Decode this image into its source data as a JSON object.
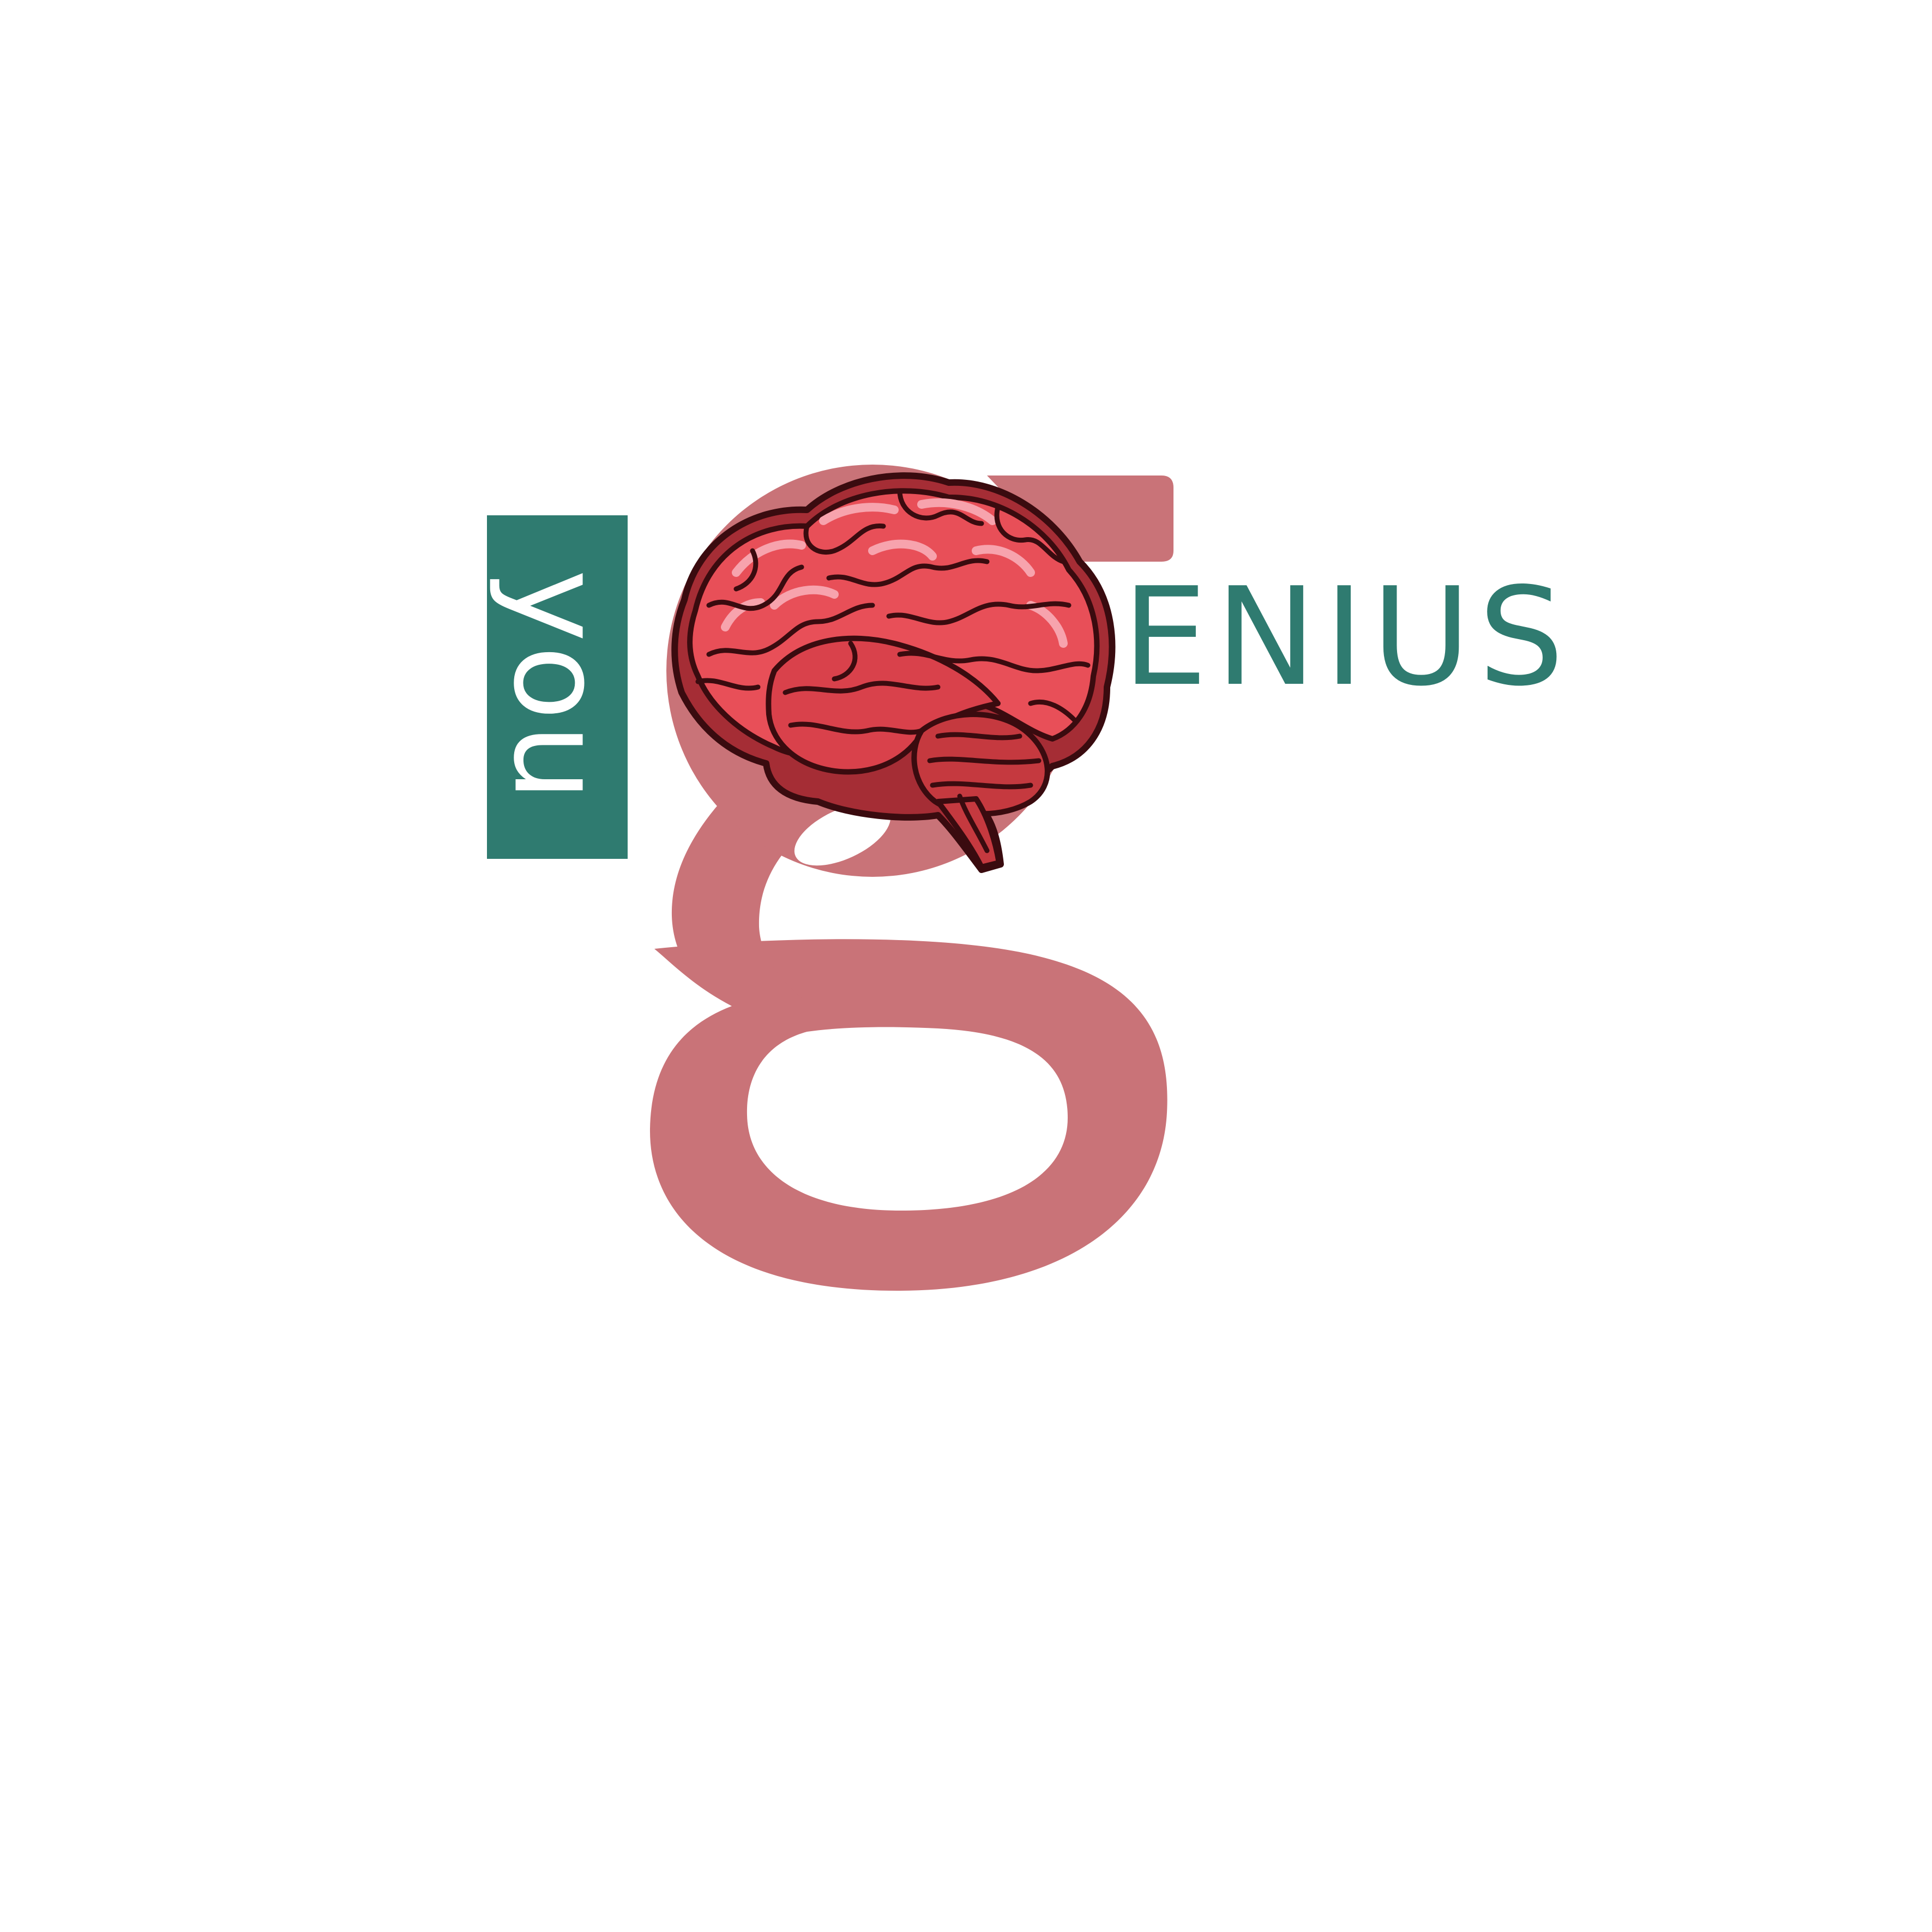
{
  "logo": {
    "word_you": "you",
    "word_enius": "ENIUS"
  },
  "colors": {
    "background": "#ffffff",
    "teal": "#2f7b70",
    "g_letter": "#c97378",
    "brain_fill": "#e84f58",
    "brain_dark": "#b1343c",
    "brain_highlight": "#f7a3ad",
    "brain_outline": "#3a0b0f"
  },
  "icons": {
    "brain": "brain-icon"
  }
}
